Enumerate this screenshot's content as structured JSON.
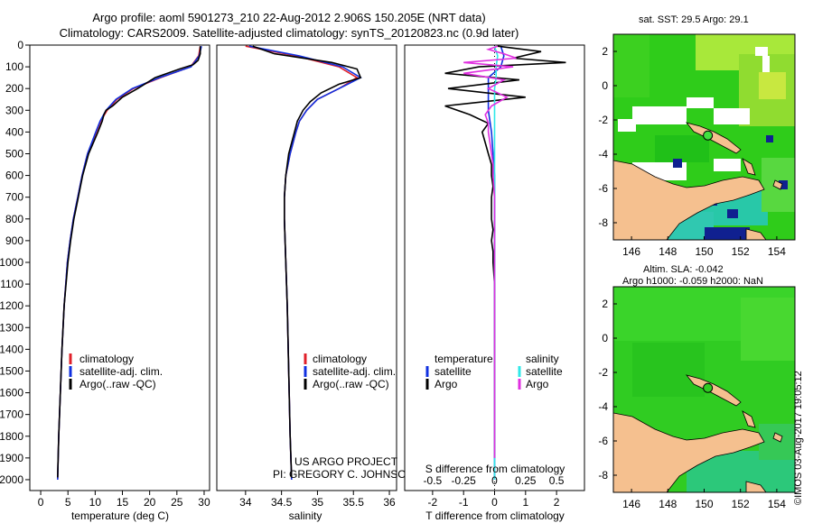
{
  "header": {
    "title_line1": "Argo profile: aoml 5901273_210 22-Aug-2012 2.906S 150.205E (NRT data)",
    "title_line2": "Climatology: CARS2009. Satellite-adjusted climatology: synTS_20120823.nc (0.9d later)"
  },
  "side_label": "©IMOS 03-Aug-2017 19:05:12",
  "project_credit": {
    "line1": "US ARGO PROJECT",
    "line2": "PI: GREGORY C. JOHNSON"
  },
  "colors": {
    "climatology": "#e0202a",
    "satellite": "#1030e0",
    "argo": "#000000",
    "sat_salinity": "#30e8e8",
    "argo_salinity": "#e030e0",
    "land": "#f5c08f",
    "ocean_green": "#2fcc1a",
    "ocean_light": "#b8ec3a",
    "ocean_teal": "#28c8a8",
    "ocean_dark": "#102090"
  },
  "chart_data": [
    {
      "type": "line",
      "name": "temperature-profile",
      "xlabel": "temperature (deg C)",
      "xlim": [
        -2,
        31
      ],
      "ylim": [
        0,
        2050
      ],
      "xticks": [
        0,
        5,
        10,
        15,
        20,
        25,
        30
      ],
      "yticks": [
        0,
        100,
        200,
        300,
        400,
        500,
        600,
        700,
        800,
        900,
        1000,
        1100,
        1200,
        1300,
        1400,
        1500,
        1600,
        1700,
        1800,
        1900,
        2000
      ],
      "legend": [
        "climatology",
        "satellite-adj. clim.",
        "Argo(..raw -QC)"
      ],
      "series": [
        {
          "name": "climatology",
          "depth": [
            5,
            50,
            100,
            150,
            200,
            250,
            300,
            350,
            400,
            500,
            600,
            700,
            800,
            900,
            1000,
            1200,
            1400,
            1600,
            1800,
            2000
          ],
          "values": [
            29.3,
            29.0,
            27.5,
            22.0,
            17.0,
            14.0,
            12.2,
            11.0,
            10.2,
            8.6,
            7.6,
            6.8,
            6.0,
            5.4,
            4.9,
            4.3,
            3.9,
            3.6,
            3.3,
            3.1
          ]
        },
        {
          "name": "satellite-adj. clim.",
          "depth": [
            5,
            50,
            100,
            150,
            200,
            250,
            300,
            350,
            400,
            500,
            600,
            700,
            800,
            900,
            1000,
            1200,
            1400,
            1600,
            1800,
            2000
          ],
          "values": [
            29.5,
            29.1,
            27.6,
            21.8,
            16.8,
            13.8,
            12.0,
            10.9,
            10.1,
            8.6,
            7.6,
            6.8,
            6.0,
            5.4,
            4.9,
            4.3,
            3.9,
            3.6,
            3.3,
            3.1
          ]
        },
        {
          "name": "Argo(..raw -QC)",
          "depth": [
            5,
            40,
            70,
            90,
            110,
            150,
            200,
            240,
            280,
            300,
            320,
            350,
            400,
            500,
            600,
            700,
            800,
            900,
            1000,
            1200,
            1400,
            1600,
            1800,
            1990
          ],
          "values": [
            29.3,
            29.3,
            28.9,
            28.0,
            25.5,
            21.0,
            17.8,
            15.0,
            13.2,
            12.0,
            11.6,
            11.3,
            10.5,
            8.8,
            7.7,
            6.9,
            6.1,
            5.5,
            5.0,
            4.3,
            3.9,
            3.6,
            3.3,
            3.1
          ]
        }
      ]
    },
    {
      "type": "line",
      "name": "salinity-profile",
      "xlabel": "salinity",
      "xlim": [
        33.6,
        36.1
      ],
      "ylim": [
        0,
        2050
      ],
      "xticks": [
        34,
        34.5,
        35,
        35.5,
        36
      ],
      "legend": [
        "climatology",
        "satellite-adj. clim.",
        "Argo(..raw -QC)"
      ],
      "series": [
        {
          "name": "climatology",
          "depth": [
            5,
            50,
            100,
            150,
            200,
            250,
            300,
            350,
            400,
            500,
            600,
            700,
            800,
            1000,
            1200,
            1500,
            1800,
            2000
          ],
          "values": [
            34.0,
            34.7,
            35.3,
            35.55,
            35.3,
            35.0,
            34.85,
            34.75,
            34.7,
            34.62,
            34.56,
            34.54,
            34.54,
            34.56,
            34.58,
            34.6,
            34.62,
            34.64
          ]
        },
        {
          "name": "satellite-adj. clim.",
          "depth": [
            5,
            50,
            100,
            150,
            200,
            250,
            300,
            350,
            400,
            500,
            600,
            700,
            800,
            1000,
            1200,
            1500,
            1800,
            2000
          ],
          "values": [
            34.05,
            34.75,
            35.35,
            35.6,
            35.3,
            35.0,
            34.85,
            34.75,
            34.7,
            34.62,
            34.56,
            34.54,
            34.54,
            34.56,
            34.58,
            34.6,
            34.62,
            34.64
          ]
        },
        {
          "name": "Argo(..raw -QC)",
          "depth": [
            5,
            40,
            80,
            110,
            150,
            180,
            220,
            260,
            300,
            350,
            400,
            500,
            600,
            700,
            800,
            1000,
            1200,
            1500,
            1800,
            1990
          ],
          "values": [
            34.1,
            34.4,
            35.2,
            35.55,
            35.6,
            35.3,
            35.05,
            34.9,
            34.8,
            34.72,
            34.68,
            34.6,
            34.56,
            34.54,
            34.54,
            34.56,
            34.58,
            34.6,
            34.62,
            34.64
          ]
        }
      ]
    },
    {
      "type": "line",
      "name": "difference-profile",
      "xlabel_top": "S difference from climatology",
      "xlabel_bottom": "T difference from climatology",
      "xlim": [
        -2.9,
        2.9
      ],
      "ylim": [
        0,
        2050
      ],
      "xticks_bottom": [
        -2,
        -1,
        0,
        1,
        2
      ],
      "xticks_top": [
        -0.5,
        -0.25,
        0,
        0.25,
        0.5
      ],
      "xticks_top_labels": [
        "-0.5",
        "-0.25",
        "0",
        "0.25",
        "0.5"
      ],
      "legend_headers": [
        "temperature",
        "salinity"
      ],
      "legend": [
        "satellite",
        "Argo",
        "satellite",
        "Argo"
      ],
      "series": [
        {
          "name": "temperature satellite",
          "depth": [
            5,
            50,
            100,
            150,
            200,
            300,
            400,
            600,
            800,
            1000,
            1500,
            2000
          ],
          "values": [
            0.2,
            0.3,
            0.2,
            -0.2,
            -0.2,
            -0.2,
            -0.1,
            0.0,
            0.0,
            0.0,
            0.0,
            0.0
          ]
        },
        {
          "name": "temperature Argo",
          "depth": [
            5,
            30,
            60,
            80,
            100,
            130,
            160,
            200,
            240,
            280,
            320,
            360,
            400,
            450,
            500,
            550,
            600,
            650,
            700,
            750,
            800,
            850,
            900,
            950,
            1000,
            1100,
            1200,
            1400,
            1600,
            1800,
            1900
          ],
          "values": [
            0.1,
            1.5,
            0.6,
            2.3,
            -0.5,
            -1.6,
            0.8,
            -1.5,
            1.0,
            -1.6,
            -0.8,
            -0.2,
            -0.4,
            -0.3,
            -0.2,
            -0.1,
            -0.1,
            -0.05,
            -0.1,
            -0.1,
            -0.1,
            -0.05,
            -0.1,
            -0.05,
            -0.05,
            0.0,
            0.0,
            0.0,
            0.0,
            0.0,
            0.0
          ]
        },
        {
          "name": "salinity satellite",
          "depth": [
            5,
            50,
            100,
            150,
            200,
            300,
            400,
            600,
            800,
            1000,
            1500,
            2000
          ],
          "values": [
            0.0,
            0.1,
            0.05,
            0.05,
            0.0,
            0.0,
            0.0,
            0.0,
            0.0,
            0.0,
            0.0,
            0.0
          ]
        },
        {
          "name": "salinity Argo",
          "depth": [
            5,
            20,
            40,
            60,
            80,
            100,
            130,
            160,
            200,
            240,
            280,
            320,
            360,
            400,
            450,
            500,
            550,
            600,
            700,
            800,
            900,
            1000,
            1200,
            1500,
            1800,
            1900
          ],
          "values": [
            0.1,
            -0.2,
            0.3,
            0.7,
            -1.0,
            0.6,
            -1.0,
            0.3,
            -0.2,
            0.4,
            -0.1,
            -0.3,
            -0.2,
            -0.2,
            -0.15,
            -0.1,
            -0.05,
            -0.05,
            0.0,
            0.0,
            0.0,
            0.0,
            0.0,
            0.0,
            0.0,
            0.0
          ]
        }
      ]
    },
    {
      "type": "heatmap",
      "name": "sst-map",
      "title": "sat. SST: 29.5  Argo: 29.1",
      "xlim": [
        145,
        155
      ],
      "ylim": [
        -9,
        3
      ],
      "xticks": [
        146,
        148,
        150,
        152,
        154
      ],
      "yticks": [
        2,
        0,
        -2,
        -4,
        -6,
        -8
      ],
      "profile_location": {
        "lon": 150.205,
        "lat": -2.906
      }
    },
    {
      "type": "heatmap",
      "name": "sla-map",
      "title_line1": "Altim. SLA: -0.042",
      "title_line2": "Argo h1000: -0.059  h2000: NaN",
      "xlim": [
        145,
        155
      ],
      "ylim": [
        -9,
        3
      ],
      "xticks": [
        146,
        148,
        150,
        152,
        154
      ],
      "yticks": [
        2,
        0,
        -2,
        -4,
        -6,
        -8
      ],
      "profile_location": {
        "lon": 150.205,
        "lat": -2.906
      }
    }
  ]
}
